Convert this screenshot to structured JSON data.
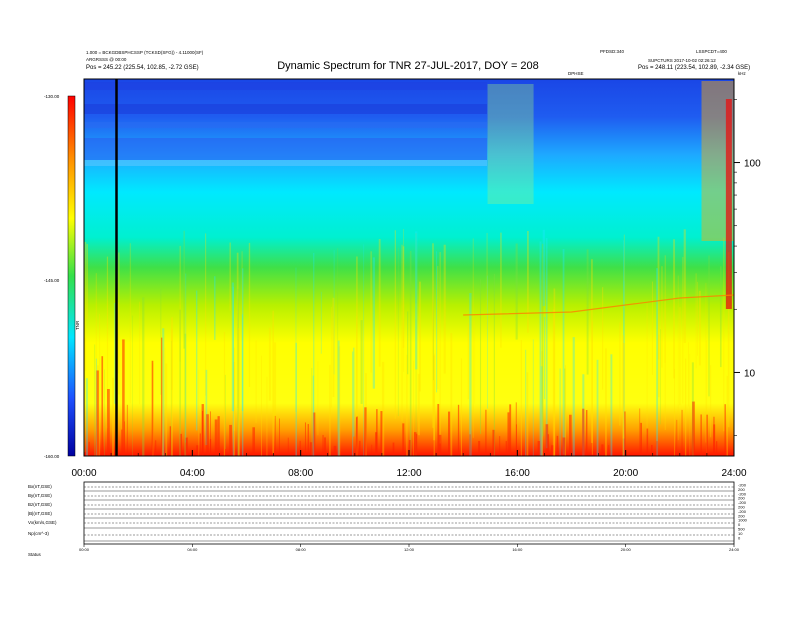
{
  "header": {
    "title": "Dynamic Spectrum for TNR 27-JUL-2017, DOY = 208",
    "left_line1": "1.000 = BCKGDBSPHCSSP (TCKSD(SFG)) - 4.11000(SF)",
    "left_line2": "ARGRSSS @ 00:00",
    "left_line3": "Pos = 245.22 (225.54, 102.85, -2.72 GSE)",
    "center_small": "DPHSE",
    "right_line1": "PFDSD:340",
    "right_line2": "LSSPCDT=400",
    "right_line3": "SUPCTURS 2017-10-02 02:26:12",
    "right_line4": "Pos = 248.11 (223.54, 102.89, -2.34 GSE)",
    "corner_unit": "kHz"
  },
  "colorbar": {
    "label": "TNR",
    "tick_labels": [
      "-130.00",
      "-145.00",
      "-160.00"
    ]
  },
  "chart_data": {
    "type": "heatmap",
    "title": "Dynamic Spectrum for TNR 27-JUL-2017, DOY = 208",
    "x_ticks": [
      "00:00",
      "04:00",
      "08:00",
      "12:00",
      "16:00",
      "20:00",
      "24:00"
    ],
    "x_range_hours": [
      0,
      24
    ],
    "y_axis_right": {
      "scale": "log",
      "unit": "kHz",
      "ticks": [
        10,
        100
      ],
      "range": [
        4,
        250
      ]
    },
    "colorbar": {
      "min": -160,
      "max": -130,
      "ticks": [
        -130,
        -145,
        -160
      ]
    },
    "marker_line_hour": 1.2,
    "colormap": [
      "#0000a0",
      "#1e50ff",
      "#00e6ff",
      "#33e04a",
      "#ffff00",
      "#ff8c00",
      "#ff0000"
    ]
  },
  "bottom_panels": {
    "labels": [
      "Bx(nT,GSE)",
      "By(nT,GSE)",
      "Bz(nT,GSE)",
      "|B|(nT,GSE)",
      "Vx(km/s,GSE)",
      "Np(cm^-3)",
      "Status"
    ],
    "right_ticks": [
      "-200",
      "200",
      "-200",
      "200",
      "-200",
      "200",
      "-200",
      "200",
      "1000",
      "0",
      "500",
      "10",
      "0"
    ],
    "time_ticks": [
      "00:00",
      "04:00",
      "08:00",
      "12:00",
      "16:00",
      "20:00",
      "24:00"
    ],
    "status_label": "Status"
  }
}
